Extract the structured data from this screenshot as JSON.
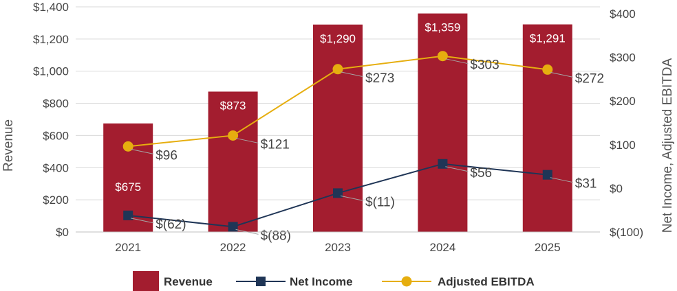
{
  "chart_data": {
    "type": "bar",
    "title": "",
    "categories": [
      "2021",
      "2022",
      "2023",
      "2024",
      "2025"
    ],
    "xlabel": "",
    "ylabel": "Revenue",
    "y2label": "Net Income, Adjusted EBITDA",
    "ylim": [
      0,
      1400
    ],
    "y2lim": [
      -100,
      400
    ],
    "yticks": [
      0,
      200,
      400,
      600,
      800,
      1000,
      1200,
      1400
    ],
    "ytick_labels": [
      "$0",
      "$200",
      "$400",
      "$600",
      "$800",
      "$1,000",
      "$1,200",
      "$1,400"
    ],
    "y2ticks": [
      -100,
      0,
      100,
      200,
      300,
      400
    ],
    "y2tick_labels": [
      "$(100)",
      "$0",
      "$100",
      "$200",
      "$300",
      "$400"
    ],
    "grid": true,
    "legend_position": "bottom",
    "series": [
      {
        "name": "Revenue",
        "kind": "bar",
        "axis": "left",
        "color": "#A31D2F",
        "values": [
          675,
          873,
          1290,
          1359,
          1291
        ],
        "labels": [
          "$675",
          "$873",
          "$1,290",
          "$1,359",
          "$1,291"
        ]
      },
      {
        "name": "Net Income",
        "kind": "line",
        "marker": "square",
        "axis": "right",
        "color": "#1F3556",
        "values": [
          -62,
          -88,
          -11,
          56,
          31
        ],
        "labels": [
          "$(62)",
          "$(88)",
          "$(11)",
          "$56",
          "$31"
        ]
      },
      {
        "name": "Adjusted EBITDA",
        "kind": "line",
        "marker": "circle",
        "axis": "right",
        "color": "#E6AE0F",
        "values": [
          96,
          121,
          273,
          303,
          272
        ],
        "labels": [
          "$96",
          "$121",
          "$273",
          "$303",
          "$272"
        ]
      }
    ]
  }
}
